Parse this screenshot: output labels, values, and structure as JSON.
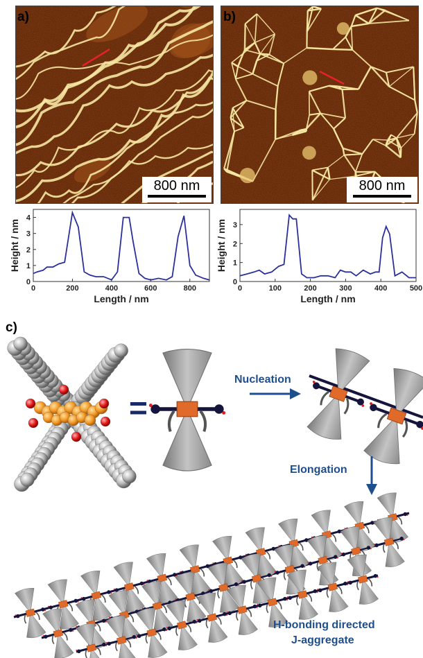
{
  "panels": {
    "a": {
      "label": "a)",
      "scale_bar": "800 nm"
    },
    "b": {
      "label": "b)",
      "scale_bar": "800 nm"
    },
    "c": {
      "label": "c)"
    }
  },
  "scheme": {
    "equals": "=",
    "nucleation": "Nucleation",
    "elongation": "Elongation",
    "caption_line1": "H-bonding directed",
    "caption_line2": "J-aggregate"
  },
  "colors": {
    "afm_dark": "#5a1e04",
    "afm_mid": "#a0521a",
    "afm_bright": "#f6e7a2",
    "profile_line": "#2b2f9c",
    "section_marker": "#e8202a",
    "scheme_text": "#1f4e8c",
    "core_orange": "#e06a2a",
    "cone_grey": "#9a9a9a"
  },
  "chart_data": [
    {
      "type": "line",
      "xlabel": "Length / nm",
      "ylabel": "Height / nm",
      "xlim": [
        0,
        900
      ],
      "ylim": [
        0,
        4.5
      ],
      "xticks": [
        0,
        200,
        400,
        600,
        800
      ],
      "yticks": [
        0,
        1,
        2,
        3,
        4
      ],
      "grid": false,
      "series": [
        {
          "x": [
            0,
            20,
            50,
            70,
            100,
            130,
            160,
            200,
            230,
            260,
            290,
            320,
            360,
            400,
            430,
            460,
            490,
            510,
            540,
            570,
            600,
            640,
            680,
            710,
            740,
            770,
            800,
            830,
            870,
            900
          ],
          "y": [
            0.5,
            0.6,
            0.7,
            0.9,
            0.9,
            1.1,
            1.2,
            4.3,
            3.4,
            0.6,
            0.4,
            0.3,
            0.3,
            0.1,
            0.6,
            4.0,
            4.0,
            2.5,
            0.5,
            0.2,
            0.1,
            0.2,
            0.1,
            0.3,
            2.8,
            4.1,
            1.0,
            0.4,
            0.2,
            0.1
          ]
        }
      ]
    },
    {
      "type": "line",
      "xlabel": "Length / nm",
      "ylabel": "Height / nm",
      "xlim": [
        0,
        500
      ],
      "ylim": [
        0,
        3.8
      ],
      "xticks": [
        0,
        100,
        200,
        300,
        400,
        500
      ],
      "yticks": [
        0,
        1,
        2,
        3
      ],
      "grid": false,
      "series": [
        {
          "x": [
            0,
            20,
            40,
            55,
            70,
            90,
            110,
            125,
            140,
            150,
            160,
            175,
            190,
            210,
            230,
            250,
            270,
            285,
            300,
            315,
            330,
            350,
            370,
            385,
            395,
            405,
            415,
            425,
            440,
            460,
            480,
            500
          ],
          "y": [
            0.3,
            0.4,
            0.5,
            0.6,
            0.4,
            0.5,
            0.8,
            0.9,
            3.5,
            3.3,
            3.3,
            0.4,
            0.2,
            0.2,
            0.3,
            0.3,
            0.2,
            0.6,
            0.5,
            0.5,
            0.3,
            0.6,
            0.4,
            0.5,
            0.5,
            2.3,
            2.9,
            2.5,
            0.3,
            0.5,
            0.2,
            0.2
          ]
        }
      ]
    }
  ]
}
